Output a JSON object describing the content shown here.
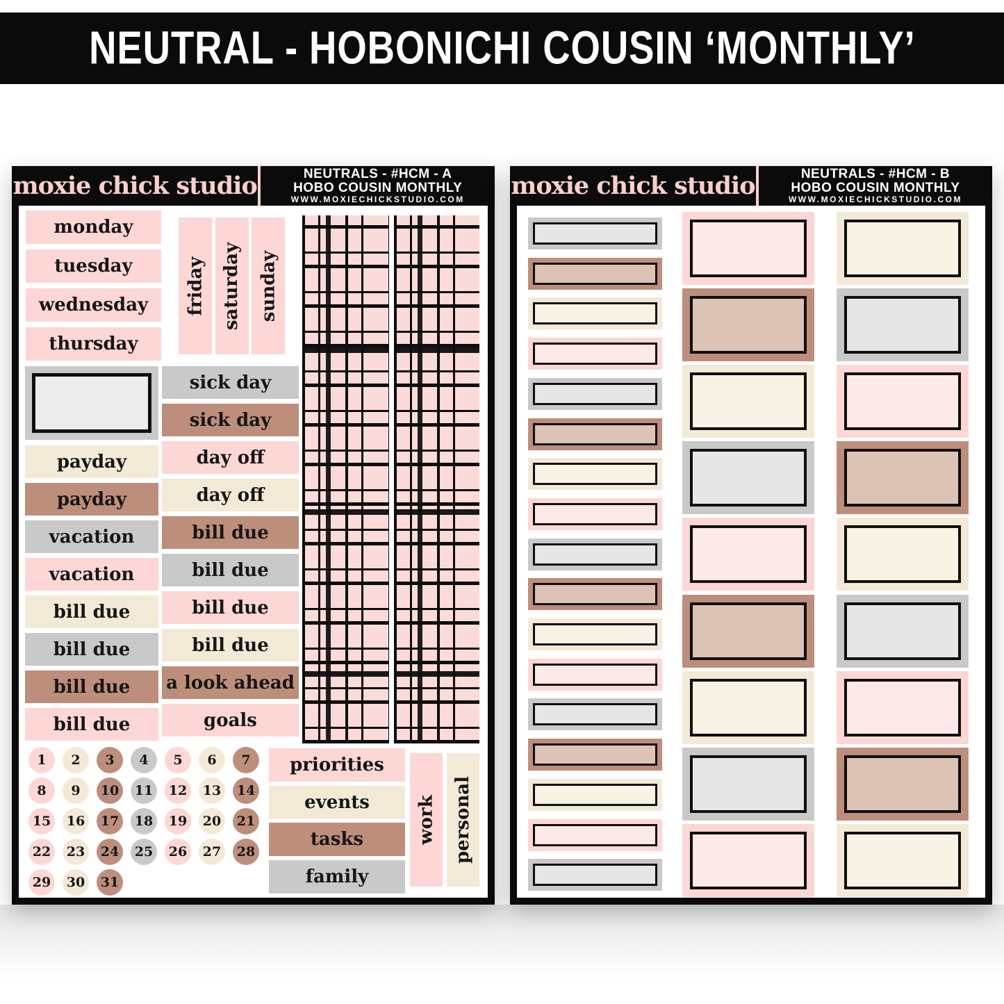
{
  "banner": {
    "title": "NEUTRAL - HOBONICHI COUSIN ‘MONTHLY’"
  },
  "colors": {
    "black": "#0b0b0b",
    "pink": "#fcd7d5",
    "pink_light": "#fdeae8",
    "cream": "#f3e9d7",
    "cream_light": "#f8f2e4",
    "brown": "#bd8e7c",
    "brown_light": "#dcc3b6",
    "gray": "#c9c9c9",
    "gray_light": "#e6e6e6",
    "plaid_pink": "#fbdbd9",
    "logo_pink": "#f8cfcb"
  },
  "sheet_a": {
    "logo": "moxie chick studio",
    "info_line1": "NEUTRALS - #HCM - A",
    "info_line2": "HOBO COUSIN MONTHLY",
    "info_line3": "WWW.MOXIECHICKSTUDIO.COM",
    "weekday_rows": [
      {
        "label": "monday",
        "color": "pink"
      },
      {
        "label": "tuesday",
        "color": "pink"
      },
      {
        "label": "wednesday",
        "color": "pink"
      },
      {
        "label": "thursday",
        "color": "pink"
      }
    ],
    "weekday_columns": [
      {
        "label": "friday",
        "color": "pink"
      },
      {
        "label": "saturday",
        "color": "pink"
      },
      {
        "label": "sunday",
        "color": "pink"
      }
    ],
    "left_column": [
      {
        "type": "frame",
        "label": "",
        "color": "gray"
      },
      {
        "label": "payday",
        "color": "cream"
      },
      {
        "label": "payday",
        "color": "brown"
      },
      {
        "label": "vacation",
        "color": "gray"
      },
      {
        "label": "vacation",
        "color": "pink"
      },
      {
        "label": "bill due",
        "color": "cream"
      },
      {
        "label": "bill due",
        "color": "gray"
      },
      {
        "label": "bill due",
        "color": "brown"
      },
      {
        "label": "bill due",
        "color": "pink"
      }
    ],
    "right_column": [
      {
        "label": "sick day",
        "color": "gray"
      },
      {
        "label": "sick day",
        "color": "brown"
      },
      {
        "label": "day off",
        "color": "pink"
      },
      {
        "label": "day off",
        "color": "cream"
      },
      {
        "label": "bill due",
        "color": "brown"
      },
      {
        "label": "bill due",
        "color": "gray"
      },
      {
        "label": "bill due",
        "color": "pink"
      },
      {
        "label": "bill due",
        "color": "cream"
      },
      {
        "label": "a look ahead",
        "color": "brown"
      },
      {
        "label": "goals",
        "color": "pink"
      }
    ],
    "date_dots": [
      {
        "n": "1",
        "color": "pink"
      },
      {
        "n": "2",
        "color": "cream"
      },
      {
        "n": "3",
        "color": "brown"
      },
      {
        "n": "4",
        "color": "gray"
      },
      {
        "n": "5",
        "color": "pink"
      },
      {
        "n": "6",
        "color": "cream"
      },
      {
        "n": "7",
        "color": "brown"
      },
      {
        "n": "8",
        "color": "pink"
      },
      {
        "n": "9",
        "color": "cream"
      },
      {
        "n": "10",
        "color": "brown"
      },
      {
        "n": "11",
        "color": "gray"
      },
      {
        "n": "12",
        "color": "pink"
      },
      {
        "n": "13",
        "color": "cream"
      },
      {
        "n": "14",
        "color": "brown"
      },
      {
        "n": "15",
        "color": "pink"
      },
      {
        "n": "16",
        "color": "cream"
      },
      {
        "n": "17",
        "color": "brown"
      },
      {
        "n": "18",
        "color": "gray"
      },
      {
        "n": "19",
        "color": "pink"
      },
      {
        "n": "20",
        "color": "cream"
      },
      {
        "n": "21",
        "color": "brown"
      },
      {
        "n": "22",
        "color": "pink"
      },
      {
        "n": "23",
        "color": "cream"
      },
      {
        "n": "24",
        "color": "brown"
      },
      {
        "n": "25",
        "color": "gray"
      },
      {
        "n": "26",
        "color": "pink"
      },
      {
        "n": "27",
        "color": "cream"
      },
      {
        "n": "28",
        "color": "brown"
      },
      {
        "n": "29",
        "color": "pink"
      },
      {
        "n": "30",
        "color": "cream"
      },
      {
        "n": "31",
        "color": "brown"
      }
    ],
    "category_rows": [
      {
        "label": "priorities",
        "color": "pink"
      },
      {
        "label": "events",
        "color": "cream"
      },
      {
        "label": "tasks",
        "color": "brown"
      },
      {
        "label": "family",
        "color": "gray"
      }
    ],
    "category_columns": [
      {
        "label": "work",
        "color": "pink"
      },
      {
        "label": "personal",
        "color": "cream"
      }
    ]
  },
  "sheet_b": {
    "logo": "moxie chick studio",
    "info_line1": "NEUTRALS - #HCM - B",
    "info_line2": "HOBO COUSIN MONTHLY",
    "info_line3": "WWW.MOXIECHICKSTUDIO.COM",
    "bars": [
      "gray",
      "brown",
      "cream",
      "pink",
      "gray",
      "brown",
      "cream",
      "pink",
      "gray",
      "brown",
      "cream",
      "pink",
      "gray",
      "brown",
      "cream",
      "pink",
      "gray"
    ],
    "boxes_left": [
      "pink",
      "brown",
      "cream",
      "gray",
      "pink",
      "brown",
      "cream",
      "gray",
      "pink"
    ],
    "boxes_right": [
      "cream",
      "gray",
      "pink",
      "brown",
      "cream",
      "gray",
      "pink",
      "brown",
      "cream"
    ]
  }
}
